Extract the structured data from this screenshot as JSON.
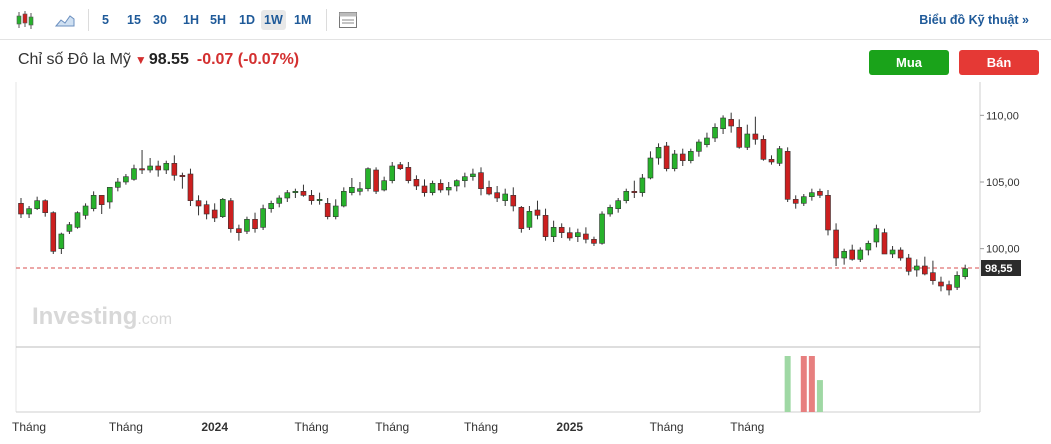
{
  "toolbar": {
    "icons": [
      "candlestick-icon",
      "area-chart-icon",
      "indicator-panel-icon"
    ],
    "timeframes": [
      "5",
      "15",
      "30",
      "1H",
      "5H",
      "1D",
      "1W",
      "1M"
    ],
    "active_timeframe": "1W",
    "technical_link": "Biểu đồ Kỹ thuật »"
  },
  "quote": {
    "name": "Chỉ số Đô la Mỹ",
    "arrow": "▼",
    "price": "98.55",
    "change": "-0.07",
    "change_pct": "(-0.07%)"
  },
  "actions": {
    "buy": "Mua",
    "sell": "Bán"
  },
  "watermark": {
    "brand": "Investing",
    "suffix": ".com"
  },
  "colors": {
    "up": "#27b22b",
    "down": "#cc1f1f",
    "price_line": "#d94f4f",
    "vol_up": "#9fd8a4",
    "vol_down": "#e77f7f"
  },
  "chart_data": {
    "type": "candlestick",
    "y_ticks": [
      "110,00",
      "105,00",
      "100,00"
    ],
    "y_tick_values": [
      110,
      105,
      100
    ],
    "ylim": [
      92.7,
      112.5
    ],
    "current_price_label": "98,55",
    "current_price": 98.55,
    "x_labels": [
      "Tháng",
      "Tháng",
      "2024",
      "Tháng",
      "Tháng",
      "Tháng",
      "2025",
      "Tháng",
      "Tháng"
    ],
    "x_label_index": [
      1,
      13,
      24,
      36,
      46,
      57,
      68,
      80,
      90
    ],
    "candles": [
      [
        103.4,
        103.8,
        102.3,
        102.6
      ],
      [
        102.6,
        103.2,
        102.3,
        103.0
      ],
      [
        103.0,
        103.9,
        102.9,
        103.6
      ],
      [
        103.6,
        103.7,
        102.4,
        102.7
      ],
      [
        102.7,
        102.8,
        99.6,
        99.8
      ],
      [
        100.0,
        101.2,
        99.6,
        101.1
      ],
      [
        101.3,
        102.0,
        101.1,
        101.8
      ],
      [
        101.6,
        102.8,
        101.5,
        102.7
      ],
      [
        102.5,
        103.4,
        102.2,
        103.2
      ],
      [
        103.0,
        104.3,
        102.8,
        104.0
      ],
      [
        104.0,
        104.0,
        102.6,
        103.3
      ],
      [
        103.5,
        104.6,
        103.0,
        104.6
      ],
      [
        104.6,
        105.3,
        104.3,
        105.0
      ],
      [
        105.0,
        105.6,
        104.8,
        105.4
      ],
      [
        105.2,
        106.3,
        105.1,
        106.0
      ],
      [
        106.0,
        107.4,
        105.6,
        105.9
      ],
      [
        105.9,
        106.8,
        105.7,
        106.2
      ],
      [
        106.2,
        106.6,
        105.4,
        105.9
      ],
      [
        105.9,
        106.6,
        105.6,
        106.4
      ],
      [
        106.4,
        107.0,
        105.1,
        105.5
      ],
      [
        105.5,
        105.7,
        104.5,
        105.4
      ],
      [
        105.6,
        106.0,
        103.2,
        103.6
      ],
      [
        103.6,
        104.0,
        102.5,
        103.2
      ],
      [
        103.3,
        103.6,
        102.2,
        102.6
      ],
      [
        102.9,
        103.4,
        102.0,
        102.3
      ],
      [
        102.4,
        103.8,
        102.3,
        103.7
      ],
      [
        103.6,
        103.8,
        101.2,
        101.5
      ],
      [
        101.5,
        101.8,
        100.6,
        101.2
      ],
      [
        101.3,
        102.4,
        101.1,
        102.2
      ],
      [
        102.2,
        102.7,
        101.2,
        101.5
      ],
      [
        101.6,
        103.3,
        101.4,
        103.0
      ],
      [
        103.0,
        103.6,
        102.7,
        103.4
      ],
      [
        103.4,
        104.0,
        103.1,
        103.8
      ],
      [
        103.8,
        104.4,
        103.5,
        104.2
      ],
      [
        104.2,
        104.5,
        103.8,
        104.3
      ],
      [
        104.3,
        104.8,
        103.9,
        104.0
      ],
      [
        104.0,
        104.4,
        103.3,
        103.6
      ],
      [
        103.6,
        104.2,
        103.3,
        103.7
      ],
      [
        103.4,
        103.8,
        102.2,
        102.4
      ],
      [
        102.4,
        103.7,
        102.2,
        103.2
      ],
      [
        103.2,
        104.6,
        103.1,
        104.3
      ],
      [
        104.2,
        105.3,
        104.0,
        104.6
      ],
      [
        104.3,
        105.0,
        104.0,
        104.5
      ],
      [
        104.5,
        106.1,
        104.3,
        106.0
      ],
      [
        105.9,
        106.1,
        104.1,
        104.3
      ],
      [
        104.4,
        105.4,
        104.3,
        105.1
      ],
      [
        105.1,
        106.5,
        104.9,
        106.2
      ],
      [
        106.3,
        106.5,
        105.9,
        106.0
      ],
      [
        106.1,
        106.5,
        104.9,
        105.1
      ],
      [
        105.2,
        105.5,
        104.4,
        104.7
      ],
      [
        104.7,
        105.2,
        103.9,
        104.2
      ],
      [
        104.2,
        105.1,
        104.0,
        104.9
      ],
      [
        104.9,
        105.2,
        104.2,
        104.4
      ],
      [
        104.4,
        105.0,
        104.0,
        104.6
      ],
      [
        104.7,
        105.2,
        104.3,
        105.1
      ],
      [
        105.1,
        105.7,
        104.6,
        105.4
      ],
      [
        105.4,
        106.0,
        105.1,
        105.6
      ],
      [
        105.7,
        106.1,
        104.0,
        104.5
      ],
      [
        104.6,
        105.1,
        104.0,
        104.1
      ],
      [
        104.2,
        104.7,
        103.5,
        103.8
      ],
      [
        103.6,
        104.5,
        103.2,
        104.1
      ],
      [
        104.0,
        104.6,
        102.8,
        103.2
      ],
      [
        103.1,
        103.2,
        101.2,
        101.5
      ],
      [
        101.6,
        103.2,
        101.4,
        102.8
      ],
      [
        102.9,
        103.6,
        102.2,
        102.5
      ],
      [
        102.5,
        103.0,
        100.6,
        100.9
      ],
      [
        100.9,
        102.1,
        100.5,
        101.6
      ],
      [
        101.6,
        101.9,
        100.8,
        101.2
      ],
      [
        101.2,
        101.6,
        100.6,
        100.8
      ],
      [
        100.9,
        101.5,
        100.5,
        101.2
      ],
      [
        101.1,
        101.6,
        100.4,
        100.7
      ],
      [
        100.7,
        100.9,
        100.2,
        100.4
      ],
      [
        100.4,
        102.8,
        100.3,
        102.6
      ],
      [
        102.6,
        103.3,
        102.4,
        103.1
      ],
      [
        103.0,
        103.8,
        102.7,
        103.6
      ],
      [
        103.6,
        104.5,
        103.4,
        104.3
      ],
      [
        104.3,
        105.1,
        103.8,
        104.2
      ],
      [
        104.2,
        105.6,
        103.9,
        105.3
      ],
      [
        105.3,
        107.3,
        105.2,
        106.8
      ],
      [
        106.8,
        107.9,
        106.3,
        107.6
      ],
      [
        107.7,
        108.0,
        105.8,
        106.0
      ],
      [
        106.0,
        107.4,
        105.8,
        107.1
      ],
      [
        107.1,
        107.5,
        106.2,
        106.6
      ],
      [
        106.6,
        107.5,
        106.4,
        107.3
      ],
      [
        107.3,
        108.2,
        106.9,
        108.0
      ],
      [
        107.8,
        108.7,
        107.6,
        108.3
      ],
      [
        108.3,
        109.4,
        108.0,
        109.1
      ],
      [
        109.0,
        110.0,
        108.6,
        109.8
      ],
      [
        109.7,
        110.2,
        108.7,
        109.2
      ],
      [
        109.1,
        109.7,
        107.5,
        107.6
      ],
      [
        107.6,
        109.3,
        107.4,
        108.6
      ],
      [
        108.6,
        109.9,
        107.8,
        108.2
      ],
      [
        108.2,
        108.5,
        106.6,
        106.7
      ],
      [
        106.7,
        107.0,
        106.3,
        106.5
      ],
      [
        106.4,
        107.7,
        106.2,
        107.5
      ],
      [
        107.3,
        107.6,
        103.5,
        103.7
      ],
      [
        103.7,
        104.0,
        103.0,
        103.4
      ],
      [
        103.4,
        104.1,
        103.2,
        103.9
      ],
      [
        103.9,
        104.5,
        103.6,
        104.2
      ],
      [
        104.3,
        104.5,
        103.8,
        104.0
      ],
      [
        104.0,
        104.4,
        101.0,
        101.4
      ],
      [
        101.4,
        101.9,
        98.7,
        99.3
      ],
      [
        99.3,
        100.0,
        98.8,
        99.8
      ],
      [
        99.9,
        100.3,
        99.1,
        99.2
      ],
      [
        99.2,
        100.1,
        99.0,
        99.9
      ],
      [
        99.9,
        100.6,
        99.5,
        100.4
      ],
      [
        100.5,
        101.8,
        100.1,
        101.5
      ],
      [
        101.2,
        101.5,
        99.6,
        99.6
      ],
      [
        99.6,
        100.2,
        99.3,
        99.9
      ],
      [
        99.9,
        100.1,
        99.1,
        99.3
      ],
      [
        99.3,
        99.6,
        98.0,
        98.3
      ],
      [
        98.4,
        99.2,
        97.9,
        98.7
      ],
      [
        98.7,
        99.4,
        98.0,
        98.1
      ],
      [
        98.2,
        99.1,
        97.3,
        97.6
      ],
      [
        97.5,
        97.9,
        96.8,
        97.2
      ],
      [
        97.3,
        97.6,
        96.5,
        96.9
      ],
      [
        97.1,
        98.3,
        96.9,
        98.0
      ],
      [
        97.9,
        98.8,
        97.7,
        98.5
      ]
    ],
    "volume": [
      {
        "index": 95,
        "value": 1.0,
        "dir": "up"
      },
      {
        "index": 97,
        "value": 1.0,
        "dir": "down"
      },
      {
        "index": 98,
        "value": 1.0,
        "dir": "down"
      },
      {
        "index": 99,
        "value": 0.57,
        "dir": "up"
      }
    ]
  }
}
